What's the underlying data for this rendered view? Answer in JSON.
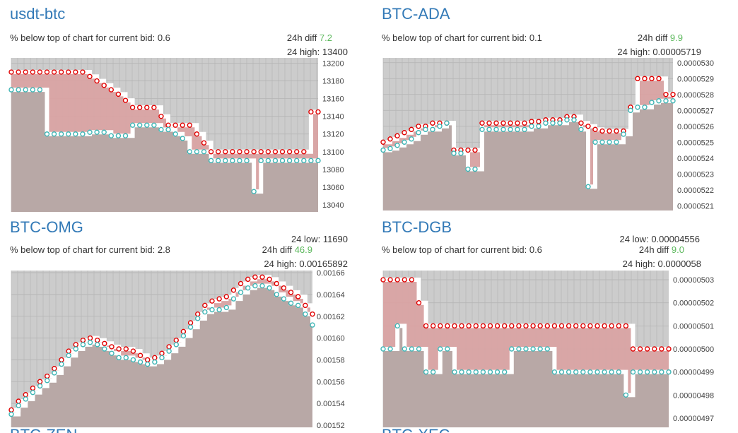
{
  "panels": [
    {
      "id": "usdt-btc",
      "title": "usdt-btc",
      "bid_label": "% below top of chart for current bid:",
      "bid_value": "0.6",
      "diff_label": "24h diff",
      "diff_value": "7.2",
      "high_label": "24 high:",
      "high_value": "13400",
      "low_label": "",
      "low_value": ""
    },
    {
      "id": "btc-ada",
      "title": "BTC-ADA",
      "bid_label": "% below top of chart for current bid:",
      "bid_value": "0.1",
      "diff_label": "24h diff",
      "diff_value": "9.9",
      "high_label": "24 high:",
      "high_value": "0.00005719",
      "low_label": "",
      "low_value": ""
    },
    {
      "id": "btc-omg",
      "title": "BTC-OMG",
      "bid_label": "% below top of chart for current bid:",
      "bid_value": "2.8",
      "diff_label": "24h diff",
      "diff_value": "46.9",
      "high_label": "24 high:",
      "high_value": "0.00165892",
      "low_label": "24 low:",
      "low_value": "11690"
    },
    {
      "id": "btc-dgb",
      "title": "BTC-DGB",
      "bid_label": "% below top of chart for current bid:",
      "bid_value": "0.6",
      "diff_label": "24h diff",
      "diff_value": "9.0",
      "high_label": "24 high:",
      "high_value": "0.0000058",
      "low_label": "24 low:",
      "low_value": "0.00004556"
    }
  ],
  "cut_titles": [
    "BTC-ZEN",
    "BTC-XEC"
  ],
  "colors": {
    "title": "#337ab7",
    "positive": "#5cb85c",
    "plot_bg": "#cccccc",
    "grid": "#b3b3b3",
    "bid_area": "#b8a8a6",
    "ask_area": "#d9a3a3",
    "ask_line": "#e00000",
    "bid_line": "#4fb8b8",
    "dot_white": "#ffffff",
    "dot_red": "#e00000",
    "dot_teal": "#3fb5b5"
  },
  "chart_data": [
    {
      "type": "area",
      "title": "usdt-btc",
      "ylim": [
        13032,
        13206
      ],
      "yticks": [
        "13200",
        "13180",
        "13160",
        "13140",
        "13120",
        "13100",
        "13080",
        "13060",
        "13040"
      ],
      "ytick_values": [
        13200,
        13180,
        13160,
        13140,
        13120,
        13100,
        13080,
        13060,
        13040
      ],
      "x": [
        0,
        10,
        20,
        30,
        40,
        50,
        60,
        70,
        80,
        90,
        100,
        110,
        120,
        130,
        140,
        150,
        160,
        170,
        180,
        190,
        200,
        210,
        220,
        230,
        240,
        250,
        260,
        270,
        280,
        290,
        300,
        310,
        320,
        330,
        340,
        350,
        360,
        370,
        380,
        390,
        400,
        410,
        420,
        430
      ],
      "series": [
        {
          "values": [
            13190,
            13190,
            13190,
            13190,
            13190,
            13190,
            13190,
            13190,
            13190,
            13190,
            13190,
            13185,
            13180,
            13175,
            13170,
            13165,
            13158,
            13150,
            13150,
            13150,
            13150,
            13140,
            13130,
            13130,
            13130,
            13130,
            13120,
            13110,
            13100,
            13100,
            13100,
            13100,
            13100,
            13100,
            13100,
            13100,
            13100,
            13100,
            13100,
            13100,
            13100,
            13100,
            13145,
            13145
          ]
        },
        {
          "values": [
            13170,
            13170,
            13170,
            13170,
            13170,
            13120,
            13120,
            13120,
            13120,
            13120,
            13120,
            13122,
            13122,
            13122,
            13118,
            13118,
            13118,
            13130,
            13130,
            13130,
            13130,
            13125,
            13125,
            13120,
            13115,
            13100,
            13100,
            13100,
            13090,
            13090,
            13090,
            13090,
            13090,
            13090,
            13055,
            13090,
            13090,
            13090,
            13090,
            13090,
            13090,
            13090,
            13090,
            13090
          ]
        }
      ]
    },
    {
      "type": "area",
      "title": "BTC-ADA",
      "ylim": [
        5.207e-05,
        5.303e-05
      ],
      "yticks": [
        "0.0000530",
        "0.0000529",
        "0.0000528",
        "0.0000527",
        "0.0000526",
        "0.0000525",
        "0.0000524",
        "0.0000523",
        "0.0000522",
        "0.0000521"
      ],
      "ytick_values": [
        5.3e-05,
        5.29e-05,
        5.28e-05,
        5.27e-05,
        5.26e-05,
        5.25e-05,
        5.24e-05,
        5.23e-05,
        5.22e-05,
        5.21e-05
      ],
      "x": [
        0,
        10,
        20,
        30,
        40,
        50,
        60,
        70,
        80,
        90,
        100,
        110,
        120,
        130,
        140,
        150,
        160,
        170,
        180,
        190,
        200,
        210,
        220,
        230,
        240,
        250,
        260,
        270,
        280,
        290,
        300,
        310,
        320,
        330,
        340,
        350,
        360,
        370,
        380,
        390,
        400,
        410
      ],
      "series": [
        {
          "values": [
            5.25e-05,
            5.252e-05,
            5.254e-05,
            5.256e-05,
            5.258e-05,
            5.26e-05,
            5.26e-05,
            5.262e-05,
            5.262e-05,
            5.262e-05,
            5.245e-05,
            5.245e-05,
            5.245e-05,
            5.245e-05,
            5.262e-05,
            5.262e-05,
            5.262e-05,
            5.262e-05,
            5.262e-05,
            5.262e-05,
            5.262e-05,
            5.263e-05,
            5.263e-05,
            5.264e-05,
            5.264e-05,
            5.264e-05,
            5.266e-05,
            5.266e-05,
            5.262e-05,
            5.26e-05,
            5.258e-05,
            5.257e-05,
            5.257e-05,
            5.257e-05,
            5.257e-05,
            5.272e-05,
            5.29e-05,
            5.29e-05,
            5.29e-05,
            5.29e-05,
            5.28e-05,
            5.28e-05
          ]
        },
        {
          "values": [
            5.245e-05,
            5.246e-05,
            5.248e-05,
            5.25e-05,
            5.252e-05,
            5.256e-05,
            5.258e-05,
            5.258e-05,
            5.26e-05,
            5.262e-05,
            5.243e-05,
            5.243e-05,
            5.233e-05,
            5.233e-05,
            5.258e-05,
            5.258e-05,
            5.258e-05,
            5.258e-05,
            5.258e-05,
            5.258e-05,
            5.258e-05,
            5.26e-05,
            5.26e-05,
            5.262e-05,
            5.262e-05,
            5.262e-05,
            5.264e-05,
            5.264e-05,
            5.258e-05,
            5.222e-05,
            5.25e-05,
            5.25e-05,
            5.25e-05,
            5.25e-05,
            5.255e-05,
            5.27e-05,
            5.272e-05,
            5.272e-05,
            5.275e-05,
            5.276e-05,
            5.276e-05,
            5.276e-05
          ]
        }
      ]
    },
    {
      "type": "area",
      "title": "BTC-OMG",
      "ylim": [
        0.001518,
        0.001662
      ],
      "yticks": [
        "0.00166",
        "0.00164",
        "0.00162",
        "0.00160",
        "0.00158",
        "0.00156",
        "0.00154",
        "0.00152"
      ],
      "ytick_values": [
        0.00166,
        0.00164,
        0.00162,
        0.0016,
        0.00158,
        0.00156,
        0.00154,
        0.00152
      ],
      "x": [
        0,
        10,
        20,
        30,
        40,
        50,
        60,
        70,
        80,
        90,
        100,
        110,
        120,
        130,
        140,
        150,
        160,
        170,
        180,
        190,
        200,
        210,
        220,
        230,
        240,
        250,
        260,
        270,
        280,
        290,
        300,
        310,
        320,
        330,
        340,
        350,
        360,
        370,
        380,
        390,
        400,
        410,
        420
      ],
      "series": [
        {
          "values": [
            0.001534,
            0.001542,
            0.001548,
            0.001554,
            0.00156,
            0.001565,
            0.001572,
            0.00158,
            0.001588,
            0.001594,
            0.001598,
            0.0016,
            0.001598,
            0.001595,
            0.001592,
            0.00159,
            0.00159,
            0.001588,
            0.001584,
            0.00158,
            0.001582,
            0.001586,
            0.001592,
            0.001598,
            0.001606,
            0.001614,
            0.001622,
            0.00163,
            0.001634,
            0.001636,
            0.001638,
            0.001644,
            0.00165,
            0.001654,
            0.001656,
            0.001656,
            0.001654,
            0.00165,
            0.001646,
            0.001642,
            0.001638,
            0.00163,
            0.001622
          ]
        },
        {
          "values": [
            0.00153,
            0.001538,
            0.001544,
            0.00155,
            0.001556,
            0.001561,
            0.001568,
            0.001576,
            0.001584,
            0.00159,
            0.001594,
            0.001596,
            0.001594,
            0.00159,
            0.001586,
            0.001582,
            0.001582,
            0.00158,
            0.001578,
            0.001576,
            0.001578,
            0.001582,
            0.001588,
            0.001594,
            0.001602,
            0.00161,
            0.001618,
            0.001624,
            0.001626,
            0.001626,
            0.001628,
            0.001636,
            0.001642,
            0.001646,
            0.001648,
            0.001648,
            0.001646,
            0.00164,
            0.001636,
            0.001632,
            0.00163,
            0.001622,
            0.001612
          ]
        }
      ]
    },
    {
      "type": "area",
      "title": "BTC-DGB",
      "ylim": [
        4.966e-06,
        5.034e-06
      ],
      "yticks": [
        "0.00000503",
        "0.00000502",
        "0.00000501",
        "0.00000500",
        "0.00000499",
        "0.00000498",
        "0.00000497"
      ],
      "ytick_values": [
        5.03e-06,
        5.02e-06,
        5.01e-06,
        5e-06,
        4.99e-06,
        4.98e-06,
        4.97e-06
      ],
      "x": [
        0,
        10,
        20,
        30,
        40,
        50,
        60,
        70,
        80,
        90,
        100,
        110,
        120,
        130,
        140,
        150,
        160,
        170,
        180,
        190,
        200,
        210,
        220,
        230,
        240,
        250,
        260,
        270,
        280,
        290,
        300,
        310,
        320,
        330,
        340,
        350,
        360,
        370,
        380,
        390,
        400
      ],
      "series": [
        {
          "values": [
            5.03e-06,
            5.03e-06,
            5.03e-06,
            5.03e-06,
            5.03e-06,
            5.02e-06,
            5.01e-06,
            5.01e-06,
            5.01e-06,
            5.01e-06,
            5.01e-06,
            5.01e-06,
            5.01e-06,
            5.01e-06,
            5.01e-06,
            5.01e-06,
            5.01e-06,
            5.01e-06,
            5.01e-06,
            5.01e-06,
            5.01e-06,
            5.01e-06,
            5.01e-06,
            5.01e-06,
            5.01e-06,
            5.01e-06,
            5.01e-06,
            5.01e-06,
            5.01e-06,
            5.01e-06,
            5.01e-06,
            5.01e-06,
            5.01e-06,
            5.01e-06,
            5.01e-06,
            5e-06,
            5e-06,
            5e-06,
            5e-06,
            5e-06,
            5e-06
          ]
        },
        {
          "values": [
            5e-06,
            5e-06,
            5.01e-06,
            5e-06,
            5e-06,
            5e-06,
            4.99e-06,
            4.99e-06,
            5e-06,
            5e-06,
            4.99e-06,
            4.99e-06,
            4.99e-06,
            4.99e-06,
            4.99e-06,
            4.99e-06,
            4.99e-06,
            4.99e-06,
            5e-06,
            5e-06,
            5e-06,
            5e-06,
            5e-06,
            5e-06,
            4.99e-06,
            4.99e-06,
            4.99e-06,
            4.99e-06,
            4.99e-06,
            4.99e-06,
            4.99e-06,
            4.99e-06,
            4.99e-06,
            4.99e-06,
            4.98e-06,
            4.99e-06,
            4.99e-06,
            4.99e-06,
            4.99e-06,
            4.99e-06,
            4.99e-06
          ]
        }
      ]
    }
  ]
}
